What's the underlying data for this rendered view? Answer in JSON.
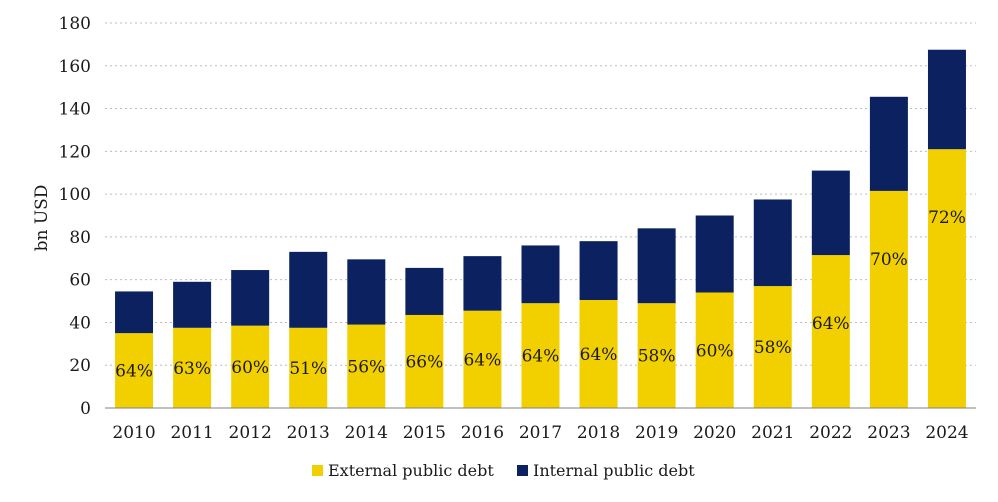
{
  "chart_data": {
    "type": "bar",
    "stacked": true,
    "title": "",
    "xlabel": "",
    "ylabel": "bn USD",
    "ylim": [
      0,
      180
    ],
    "yticks": [
      0,
      20,
      40,
      60,
      80,
      100,
      120,
      140,
      160,
      180
    ],
    "grid": "horizontal-dotted",
    "legend_position": "bottom-center",
    "categories": [
      "2010",
      "2011",
      "2012",
      "2013",
      "2014",
      "2015",
      "2016",
      "2017",
      "2018",
      "2019",
      "2020",
      "2021",
      "2022",
      "2023",
      "2024"
    ],
    "series": [
      {
        "name": "External public debt",
        "color": "#f2d000",
        "values": [
          35,
          37.5,
          38.5,
          37.5,
          39,
          43.5,
          45.5,
          49,
          50.5,
          49,
          54,
          57,
          71.5,
          101.5,
          121
        ]
      },
      {
        "name": "Internal public debt",
        "color": "#0c2260",
        "values": [
          19.5,
          21.5,
          26,
          35.5,
          30.5,
          22,
          25.5,
          27,
          27.5,
          35,
          36,
          40.5,
          39.5,
          44,
          46.5
        ]
      }
    ],
    "data_labels": [
      "64%",
      "63%",
      "60%",
      "51%",
      "56%",
      "66%",
      "64%",
      "64%",
      "64%",
      "58%",
      "60%",
      "58%",
      "64%",
      "70%",
      "72%"
    ]
  }
}
